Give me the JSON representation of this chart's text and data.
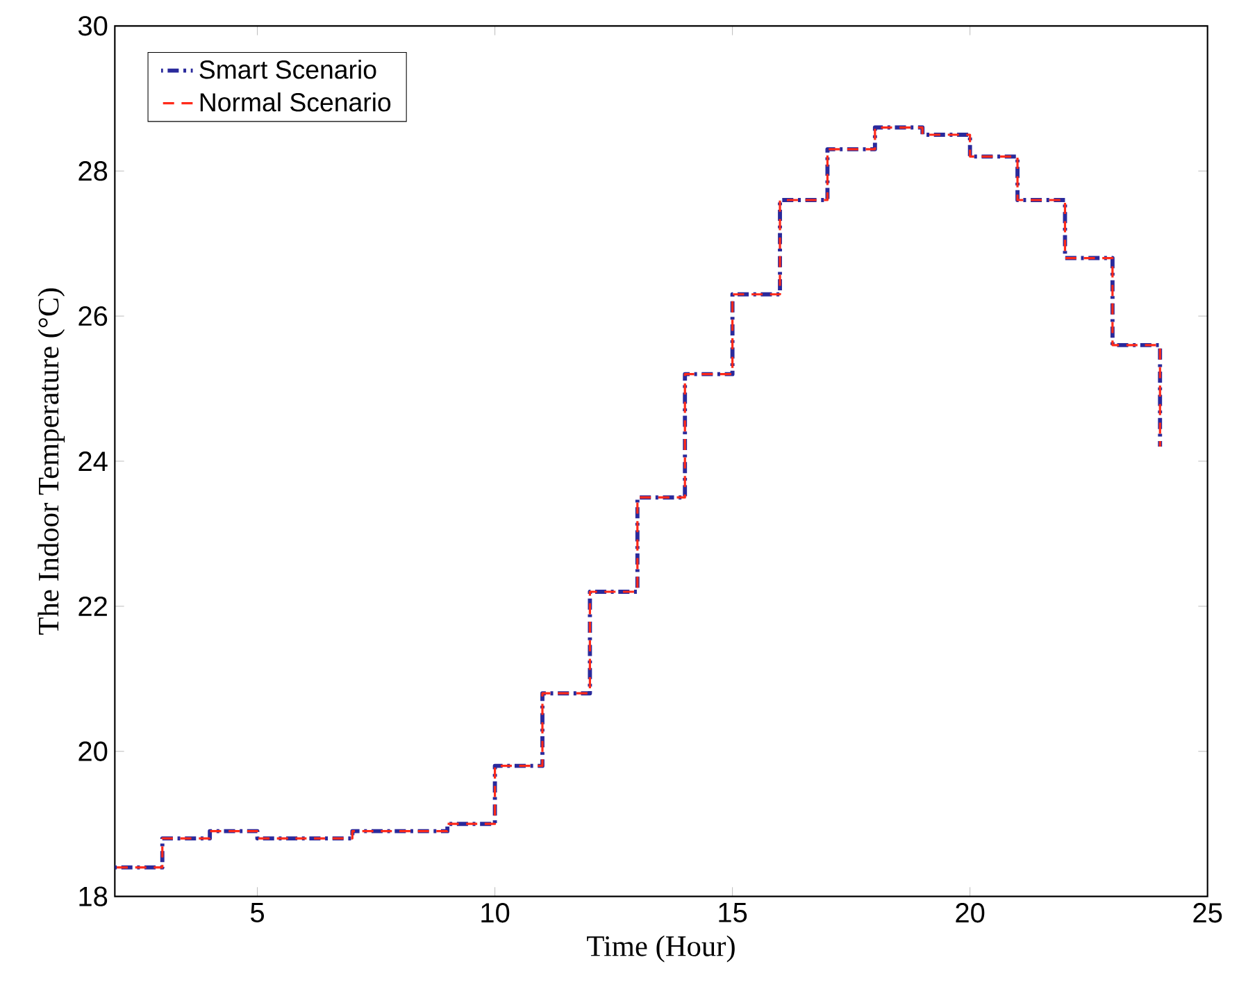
{
  "chart_data": {
    "type": "step",
    "xlabel": "Time (Hour)",
    "ylabel": "The Indoor Temperature (°C)",
    "x": [
      2,
      3,
      4,
      5,
      6,
      7,
      8,
      9,
      10,
      11,
      12,
      13,
      14,
      15,
      16,
      17,
      18,
      19,
      20,
      21,
      22,
      23,
      24
    ],
    "series": [
      {
        "name": "Smart Scenario",
        "color": "#2a2a9c",
        "line_style": "dashdot",
        "values": [
          18.4,
          18.8,
          18.9,
          18.8,
          18.8,
          18.9,
          18.9,
          19.0,
          19.8,
          20.8,
          22.2,
          23.5,
          25.2,
          26.3,
          27.6,
          28.3,
          28.6,
          28.5,
          28.2,
          27.6,
          26.8,
          25.6,
          24.2
        ]
      },
      {
        "name": "Normal Scenario",
        "color": "#ff2a1a",
        "line_style": "dashed",
        "values": [
          18.4,
          18.8,
          18.9,
          18.8,
          18.8,
          18.9,
          18.9,
          19.0,
          19.8,
          20.8,
          22.2,
          23.5,
          25.2,
          26.3,
          27.6,
          28.3,
          28.6,
          28.5,
          28.2,
          27.6,
          26.8,
          25.6,
          24.2
        ]
      }
    ],
    "xlim": [
      2,
      25
    ],
    "xticks": [
      5,
      10,
      15,
      20,
      25
    ],
    "ylim": [
      18,
      30
    ],
    "yticks": [
      18,
      20,
      22,
      24,
      26,
      28,
      30
    ],
    "grid": false,
    "legend": "top left"
  }
}
